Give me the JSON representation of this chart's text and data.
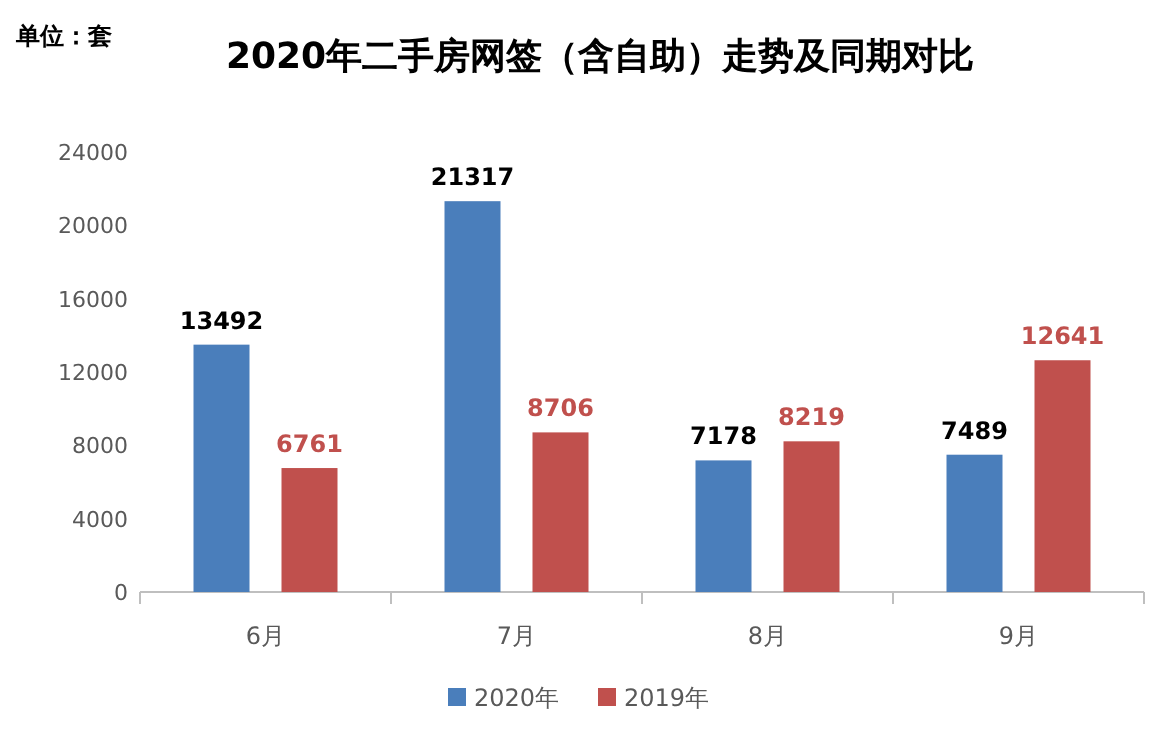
{
  "chart_data": {
    "type": "bar",
    "title": "2020年二手房网签（含自助）走势及同期对比",
    "ylabel": "单位：套",
    "categories": [
      "6月",
      "7月",
      "8月",
      "9月"
    ],
    "series": [
      {
        "name": "2020年",
        "color": "#4a7ebb",
        "values": [
          13492,
          21317,
          7178,
          7489
        ]
      },
      {
        "name": "2019年",
        "color": "#c0504d",
        "values": [
          6761,
          8706,
          8219,
          12641
        ]
      }
    ],
    "ylim": [
      0,
      24000
    ],
    "yticks": [
      0,
      4000,
      8000,
      12000,
      16000,
      20000,
      24000
    ],
    "data_labels": true,
    "legend": "bottom"
  }
}
